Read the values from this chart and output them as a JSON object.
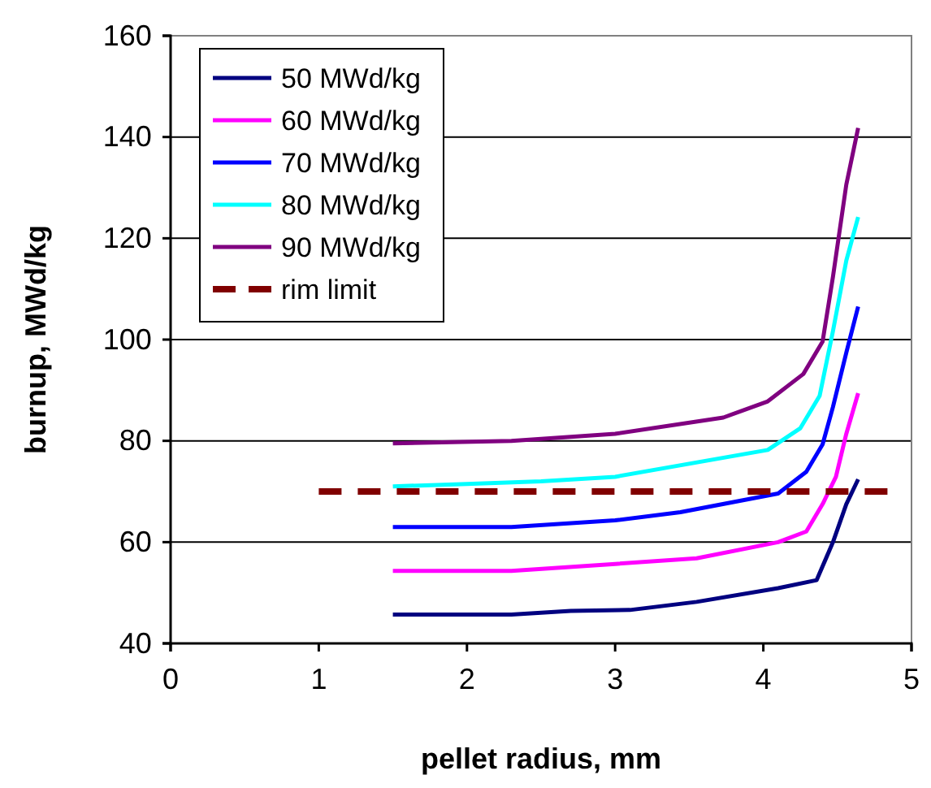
{
  "chart_data": {
    "type": "line",
    "xlabel": "pellet radius, mm",
    "ylabel": "burnup, MWd/kg",
    "xlim": [
      0,
      5
    ],
    "xticks": [
      0,
      1,
      2,
      3,
      4,
      5
    ],
    "ylim": [
      40,
      160
    ],
    "yticks": [
      40,
      60,
      80,
      100,
      120,
      140,
      160
    ],
    "grid": "y",
    "legend": "top left",
    "marker": "none",
    "series": [
      {
        "name": "50 MWd/kg",
        "color": "#000080",
        "x": [
          1.5,
          2.3,
          2.7,
          3.1,
          3.55,
          4.1,
          4.36,
          4.47,
          4.56,
          4.64
        ],
        "values": [
          45.7,
          45.7,
          46.4,
          46.6,
          48.2,
          50.9,
          52.5,
          60.0,
          67.5,
          72.4
        ]
      },
      {
        "name": "60 MWd/kg",
        "color": "#ff00ff",
        "x": [
          1.5,
          2.3,
          3.0,
          3.55,
          4.1,
          4.29,
          4.4,
          4.49,
          4.56,
          4.64
        ],
        "values": [
          54.3,
          54.3,
          55.7,
          56.8,
          60.0,
          62.1,
          67.5,
          72.9,
          81.4,
          89.4
        ]
      },
      {
        "name": "70 MWd/kg",
        "color": "#0000ff",
        "x": [
          1.5,
          2.3,
          3.0,
          3.44,
          4.1,
          4.29,
          4.4,
          4.47,
          4.56,
          4.64
        ],
        "values": [
          63.0,
          63.0,
          64.3,
          65.9,
          69.6,
          73.9,
          79.3,
          86.7,
          97.4,
          106.5
        ]
      },
      {
        "name": "80 MWd/kg",
        "color": "#00ffff",
        "x": [
          1.5,
          2.0,
          2.5,
          3.0,
          4.03,
          4.25,
          4.38,
          4.47,
          4.56,
          4.64
        ],
        "values": [
          71.0,
          71.5,
          72.0,
          72.9,
          78.2,
          82.5,
          88.9,
          101.7,
          115.6,
          124.2
        ]
      },
      {
        "name": "90 MWd/kg",
        "color": "#800080",
        "x": [
          1.5,
          2.3,
          3.0,
          3.73,
          4.03,
          4.27,
          4.4,
          4.47,
          4.56,
          4.64
        ],
        "values": [
          79.5,
          80.0,
          81.4,
          84.6,
          87.8,
          93.2,
          99.6,
          112.4,
          130.6,
          141.8
        ]
      },
      {
        "name": "rim limit",
        "color": "#800000",
        "line_style": "dashed",
        "x": [
          1,
          4.85
        ],
        "values": [
          70,
          70
        ]
      }
    ]
  }
}
